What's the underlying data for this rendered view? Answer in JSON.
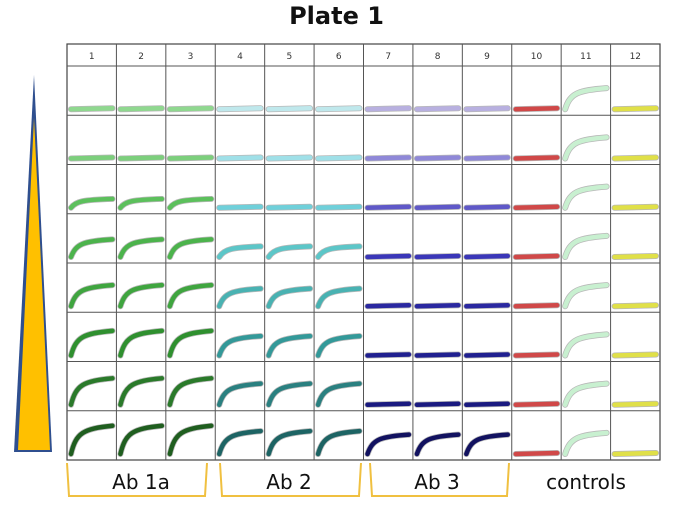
{
  "title": "Plate 1",
  "columns": [
    "1",
    "2",
    "3",
    "4",
    "5",
    "6",
    "7",
    "8",
    "9",
    "10",
    "11",
    "12"
  ],
  "groups": [
    {
      "label": "Ab 1a",
      "columns": [
        1,
        2,
        3
      ],
      "bracket": true,
      "rise": [
        0,
        0,
        0.25,
        0.5,
        0.6,
        0.7,
        0.75,
        0.8
      ],
      "colors": [
        "#8fd88f",
        "#7ccf7c",
        "#5cc05c",
        "#4cb34c",
        "#3fa53f",
        "#2f902f",
        "#2a7a2a",
        "#1f5e1f"
      ]
    },
    {
      "label": "Ab 2",
      "columns": [
        4,
        5,
        6
      ],
      "bracket": true,
      "rise": [
        0,
        0,
        0,
        0.3,
        0.5,
        0.55,
        0.6,
        0.65
      ],
      "colors": [
        "#bfe8ec",
        "#9fe0e8",
        "#6fd0da",
        "#5cc6c8",
        "#49b2b2",
        "#339999",
        "#2a8080",
        "#1d6464"
      ]
    },
    {
      "label": "Ab 3",
      "columns": [
        7,
        8,
        9
      ],
      "bracket": true,
      "rise": [
        0,
        0,
        0,
        0,
        0,
        0,
        0,
        0.55
      ],
      "colors": [
        "#b8b0e0",
        "#8f88d8",
        "#5f58c8",
        "#3a36b8",
        "#2a28a0",
        "#202090",
        "#1a1a80",
        "#121260"
      ]
    },
    {
      "label": "controls",
      "columns": [
        10,
        11,
        12
      ],
      "bracket": false
    }
  ],
  "controls": {
    "col10": {
      "color": "#d04848",
      "rise": 0
    },
    "col11": {
      "color": "#c8f0d0",
      "rise": 0.6
    },
    "col12": {
      "color": "#e0e048",
      "rise": 0
    }
  },
  "gradient_triangle": {
    "fill": "#ffc000",
    "outline": "#2f4f8f"
  },
  "bracket_color": "#f0c040"
}
